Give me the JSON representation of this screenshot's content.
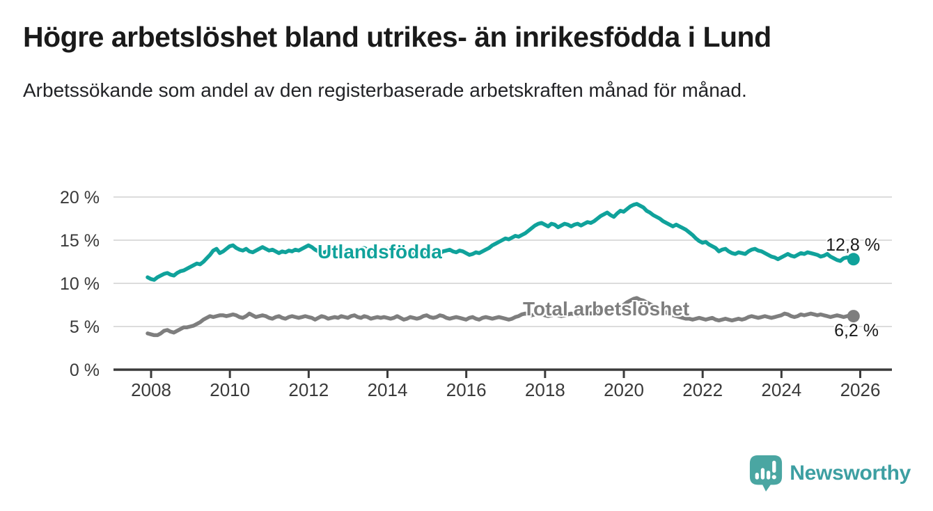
{
  "chart_data": {
    "type": "line",
    "title": "Högre arbetslöshet bland utrikes- än inrikesfödda i Lund",
    "subtitle": "Arbetssökande som andel av den registerbaserade arbetskraften månad för månad.",
    "unit": "%",
    "x_start_year": 2008,
    "points_per_year": 12,
    "xlabel": "",
    "ylabel": "",
    "ylim": [
      0,
      21
    ],
    "grid": "horizontal",
    "legend_position": "inline-labels",
    "y_ticks": [
      0,
      5,
      10,
      15,
      20
    ],
    "y_tick_labels": [
      "0 %",
      "5 %",
      "10 %",
      "15 %",
      "20 %"
    ],
    "x_ticks": [
      2008,
      2010,
      2012,
      2014,
      2016,
      2018,
      2020,
      2022,
      2024,
      2026
    ],
    "x_tick_labels": [
      "2008",
      "2010",
      "2012",
      "2014",
      "2016",
      "2018",
      "2020",
      "2022",
      "2024",
      "2026"
    ],
    "series": [
      {
        "name": "Utlandsfödda",
        "color": "#10a29b",
        "end_label": "12,8 %",
        "end_value": 12.8,
        "values": [
          10.7,
          10.5,
          10.4,
          10.7,
          10.9,
          11.1,
          11.2,
          11.0,
          10.9,
          11.2,
          11.4,
          11.5,
          11.7,
          11.9,
          12.1,
          12.3,
          12.2,
          12.5,
          12.9,
          13.3,
          13.8,
          14.0,
          13.5,
          13.7,
          14.0,
          14.3,
          14.4,
          14.1,
          13.9,
          13.8,
          14.0,
          13.7,
          13.6,
          13.8,
          14.0,
          14.2,
          14.0,
          13.8,
          13.9,
          13.7,
          13.5,
          13.7,
          13.6,
          13.8,
          13.7,
          13.9,
          13.8,
          14.0,
          14.2,
          14.4,
          14.2,
          13.9,
          13.7,
          13.5,
          13.6,
          13.8,
          13.7,
          13.9,
          14.0,
          13.8,
          13.9,
          14.0,
          13.8,
          13.7,
          13.9,
          14.0,
          14.1,
          13.9,
          13.7,
          13.8,
          13.6,
          13.8,
          13.9,
          14.0,
          13.8,
          13.6,
          13.7,
          13.9,
          14.0,
          13.8,
          13.6,
          13.5,
          13.7,
          13.8,
          13.6,
          13.5,
          13.7,
          13.8,
          13.6,
          13.5,
          13.7,
          13.8,
          13.9,
          13.7,
          13.6,
          13.8,
          13.7,
          13.5,
          13.3,
          13.4,
          13.6,
          13.5,
          13.7,
          13.9,
          14.1,
          14.4,
          14.6,
          14.8,
          15.0,
          15.2,
          15.1,
          15.3,
          15.5,
          15.4,
          15.6,
          15.8,
          16.1,
          16.4,
          16.7,
          16.9,
          17.0,
          16.8,
          16.6,
          16.9,
          16.8,
          16.5,
          16.7,
          16.9,
          16.8,
          16.6,
          16.8,
          16.9,
          16.7,
          16.9,
          17.1,
          17.0,
          17.2,
          17.5,
          17.8,
          18.0,
          18.2,
          17.9,
          17.7,
          18.1,
          18.4,
          18.3,
          18.6,
          18.9,
          19.1,
          19.2,
          19.0,
          18.8,
          18.4,
          18.2,
          17.9,
          17.7,
          17.5,
          17.2,
          17.0,
          16.8,
          16.6,
          16.8,
          16.6,
          16.4,
          16.2,
          15.9,
          15.6,
          15.2,
          14.9,
          14.7,
          14.8,
          14.5,
          14.3,
          14.1,
          13.7,
          13.9,
          14.0,
          13.7,
          13.5,
          13.4,
          13.6,
          13.5,
          13.4,
          13.7,
          13.9,
          14.0,
          13.8,
          13.7,
          13.5,
          13.3,
          13.1,
          13.0,
          12.8,
          13.0,
          13.2,
          13.4,
          13.2,
          13.1,
          13.3,
          13.5,
          13.4,
          13.6,
          13.5,
          13.4,
          13.3,
          13.1,
          13.2,
          13.4,
          13.1,
          12.9,
          12.7,
          12.6,
          12.9,
          13.0,
          12.9,
          12.8
        ]
      },
      {
        "name": "Total arbetslöshet",
        "color": "#7e7e7e",
        "end_label": "6,2 %",
        "end_value": 6.2,
        "values": [
          4.2,
          4.1,
          4.0,
          4.0,
          4.2,
          4.5,
          4.6,
          4.4,
          4.3,
          4.5,
          4.7,
          4.9,
          4.9,
          5.0,
          5.1,
          5.3,
          5.5,
          5.8,
          6.0,
          6.2,
          6.1,
          6.2,
          6.3,
          6.3,
          6.2,
          6.3,
          6.4,
          6.3,
          6.1,
          6.0,
          6.2,
          6.5,
          6.3,
          6.1,
          6.2,
          6.3,
          6.2,
          6.0,
          5.9,
          6.1,
          6.2,
          6.0,
          5.9,
          6.1,
          6.2,
          6.1,
          6.0,
          6.1,
          6.2,
          6.1,
          6.0,
          5.8,
          6.0,
          6.2,
          6.1,
          5.9,
          6.0,
          6.1,
          6.0,
          6.2,
          6.1,
          6.0,
          6.2,
          6.3,
          6.1,
          6.0,
          6.2,
          6.1,
          5.9,
          6.0,
          6.1,
          6.0,
          6.1,
          6.0,
          5.9,
          6.0,
          6.2,
          6.0,
          5.8,
          5.9,
          6.1,
          6.0,
          5.9,
          6.0,
          6.2,
          6.3,
          6.1,
          6.0,
          6.1,
          6.3,
          6.2,
          6.0,
          5.9,
          6.0,
          6.1,
          6.0,
          5.9,
          5.8,
          6.0,
          6.1,
          5.9,
          5.8,
          6.0,
          6.1,
          6.0,
          5.9,
          6.0,
          6.1,
          6.0,
          5.9,
          5.8,
          5.9,
          6.1,
          6.2,
          6.4,
          6.5,
          6.4,
          6.3,
          6.4,
          6.5,
          6.4,
          6.3,
          6.2,
          6.3,
          6.4,
          6.3,
          6.2,
          6.3,
          6.4,
          6.5,
          6.4,
          6.3,
          6.4,
          6.5,
          6.6,
          6.5,
          6.6,
          6.8,
          6.9,
          7.0,
          6.9,
          6.8,
          6.9,
          7.0,
          7.2,
          7.5,
          7.8,
          8.0,
          8.2,
          8.3,
          8.1,
          8.0,
          7.8,
          7.6,
          7.4,
          7.2,
          7.0,
          6.8,
          6.6,
          6.5,
          6.3,
          6.2,
          6.1,
          6.0,
          5.9,
          5.9,
          5.8,
          5.9,
          6.0,
          5.9,
          5.8,
          5.9,
          6.0,
          5.8,
          5.7,
          5.8,
          5.9,
          5.8,
          5.7,
          5.8,
          5.9,
          5.8,
          5.9,
          6.1,
          6.2,
          6.1,
          6.0,
          6.1,
          6.2,
          6.1,
          6.0,
          6.1,
          6.2,
          6.3,
          6.5,
          6.4,
          6.2,
          6.1,
          6.2,
          6.4,
          6.3,
          6.4,
          6.5,
          6.4,
          6.3,
          6.4,
          6.3,
          6.2,
          6.1,
          6.2,
          6.3,
          6.2,
          6.1,
          6.2,
          6.3,
          6.2
        ]
      }
    ]
  },
  "footer": {
    "brand": "Newsworthy"
  },
  "colors": {
    "line_teal": "#10a29b",
    "line_gray": "#7e7e7e",
    "axis": "#3b3b3b",
    "grid": "#dcdcdc",
    "tick_text": "#3a3a3a",
    "title_text": "#1a1a1a",
    "logo_bubble": "#4aa6a2",
    "logo_text": "#3d9fa2"
  }
}
